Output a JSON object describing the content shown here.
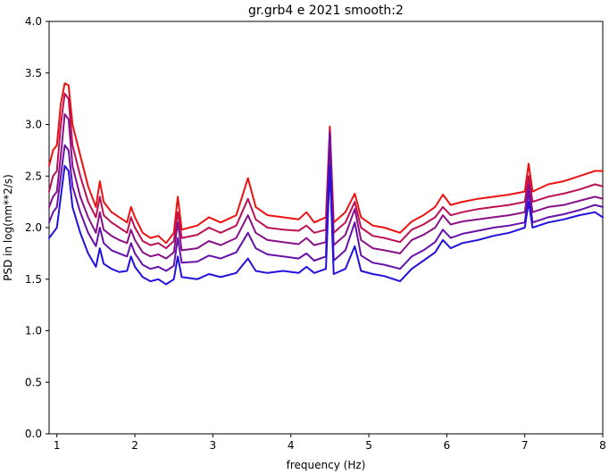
{
  "chart_data": {
    "type": "line",
    "title": "gr.grb4 e 2021 smooth:2",
    "xlabel": "frequency (Hz)",
    "ylabel": "PSD in log(nm**2/s)",
    "xlim": [
      0.9,
      8.0
    ],
    "ylim": [
      0.0,
      4.0
    ],
    "x_ticks": [
      1,
      2,
      3,
      4,
      5,
      6,
      7,
      8
    ],
    "x_tick_labels": [
      "1",
      "2",
      "3",
      "4",
      "5",
      "6",
      "7",
      "8"
    ],
    "y_ticks": [
      0.0,
      0.5,
      1.0,
      1.5,
      2.0,
      2.5,
      3.0,
      3.5,
      4.0
    ],
    "y_tick_labels": [
      "0.0",
      "0.5",
      "1.0",
      "1.5",
      "2.0",
      "2.5",
      "3.0",
      "3.5",
      "4.0"
    ],
    "grid": false,
    "legend": false,
    "series": [
      {
        "color": "#ee1111",
        "points": [
          [
            0.9,
            2.6
          ],
          [
            0.95,
            2.75
          ],
          [
            1.0,
            2.8
          ],
          [
            1.05,
            3.2
          ],
          [
            1.1,
            3.4
          ],
          [
            1.15,
            3.38
          ],
          [
            1.2,
            3.0
          ],
          [
            1.3,
            2.7
          ],
          [
            1.4,
            2.4
          ],
          [
            1.5,
            2.2
          ],
          [
            1.55,
            2.45
          ],
          [
            1.6,
            2.25
          ],
          [
            1.7,
            2.15
          ],
          [
            1.8,
            2.1
          ],
          [
            1.9,
            2.05
          ],
          [
            1.95,
            2.2
          ],
          [
            2.0,
            2.1
          ],
          [
            2.1,
            1.95
          ],
          [
            2.2,
            1.9
          ],
          [
            2.3,
            1.92
          ],
          [
            2.4,
            1.85
          ],
          [
            2.5,
            1.95
          ],
          [
            2.55,
            2.3
          ],
          [
            2.6,
            1.98
          ],
          [
            2.8,
            2.02
          ],
          [
            2.95,
            2.1
          ],
          [
            3.1,
            2.05
          ],
          [
            3.3,
            2.12
          ],
          [
            3.45,
            2.48
          ],
          [
            3.55,
            2.2
          ],
          [
            3.7,
            2.12
          ],
          [
            3.9,
            2.1
          ],
          [
            4.1,
            2.08
          ],
          [
            4.2,
            2.15
          ],
          [
            4.3,
            2.05
          ],
          [
            4.45,
            2.1
          ],
          [
            4.5,
            2.98
          ],
          [
            4.55,
            2.05
          ],
          [
            4.7,
            2.15
          ],
          [
            4.82,
            2.33
          ],
          [
            4.9,
            2.1
          ],
          [
            5.05,
            2.02
          ],
          [
            5.2,
            2.0
          ],
          [
            5.4,
            1.95
          ],
          [
            5.55,
            2.06
          ],
          [
            5.7,
            2.12
          ],
          [
            5.85,
            2.2
          ],
          [
            5.95,
            2.32
          ],
          [
            6.05,
            2.22
          ],
          [
            6.2,
            2.25
          ],
          [
            6.4,
            2.28
          ],
          [
            6.6,
            2.3
          ],
          [
            6.8,
            2.32
          ],
          [
            7.0,
            2.35
          ],
          [
            7.05,
            2.62
          ],
          [
            7.1,
            2.35
          ],
          [
            7.3,
            2.42
          ],
          [
            7.5,
            2.45
          ],
          [
            7.7,
            2.5
          ],
          [
            7.9,
            2.55
          ],
          [
            8.0,
            2.55
          ]
        ]
      },
      {
        "color": "#bb1155",
        "points": [
          [
            0.9,
            2.35
          ],
          [
            0.95,
            2.5
          ],
          [
            1.0,
            2.55
          ],
          [
            1.05,
            3.0
          ],
          [
            1.1,
            3.3
          ],
          [
            1.15,
            3.25
          ],
          [
            1.2,
            2.8
          ],
          [
            1.3,
            2.5
          ],
          [
            1.4,
            2.25
          ],
          [
            1.5,
            2.1
          ],
          [
            1.55,
            2.3
          ],
          [
            1.6,
            2.12
          ],
          [
            1.7,
            2.05
          ],
          [
            1.8,
            2.0
          ],
          [
            1.9,
            1.95
          ],
          [
            1.95,
            2.1
          ],
          [
            2.0,
            2.0
          ],
          [
            2.1,
            1.87
          ],
          [
            2.2,
            1.83
          ],
          [
            2.3,
            1.85
          ],
          [
            2.4,
            1.8
          ],
          [
            2.5,
            1.87
          ],
          [
            2.55,
            2.15
          ],
          [
            2.6,
            1.9
          ],
          [
            2.8,
            1.93
          ],
          [
            2.95,
            2.0
          ],
          [
            3.1,
            1.95
          ],
          [
            3.3,
            2.02
          ],
          [
            3.45,
            2.28
          ],
          [
            3.55,
            2.08
          ],
          [
            3.7,
            2.0
          ],
          [
            3.9,
            1.98
          ],
          [
            4.1,
            1.97
          ],
          [
            4.2,
            2.02
          ],
          [
            4.3,
            1.95
          ],
          [
            4.45,
            1.98
          ],
          [
            4.5,
            2.95
          ],
          [
            4.55,
            1.95
          ],
          [
            4.7,
            2.05
          ],
          [
            4.82,
            2.25
          ],
          [
            4.9,
            2.0
          ],
          [
            5.05,
            1.92
          ],
          [
            5.2,
            1.9
          ],
          [
            5.4,
            1.86
          ],
          [
            5.55,
            1.98
          ],
          [
            5.7,
            2.03
          ],
          [
            5.85,
            2.1
          ],
          [
            5.95,
            2.2
          ],
          [
            6.05,
            2.12
          ],
          [
            6.2,
            2.15
          ],
          [
            6.4,
            2.18
          ],
          [
            6.6,
            2.2
          ],
          [
            6.8,
            2.22
          ],
          [
            7.0,
            2.25
          ],
          [
            7.05,
            2.5
          ],
          [
            7.1,
            2.25
          ],
          [
            7.3,
            2.3
          ],
          [
            7.5,
            2.33
          ],
          [
            7.7,
            2.37
          ],
          [
            7.9,
            2.42
          ],
          [
            8.0,
            2.4
          ]
        ]
      },
      {
        "color": "#881188",
        "points": [
          [
            0.9,
            2.2
          ],
          [
            0.95,
            2.3
          ],
          [
            1.0,
            2.35
          ],
          [
            1.05,
            2.7
          ],
          [
            1.1,
            3.1
          ],
          [
            1.15,
            3.05
          ],
          [
            1.2,
            2.6
          ],
          [
            1.3,
            2.3
          ],
          [
            1.4,
            2.1
          ],
          [
            1.5,
            1.95
          ],
          [
            1.55,
            2.15
          ],
          [
            1.6,
            1.98
          ],
          [
            1.7,
            1.92
          ],
          [
            1.8,
            1.88
          ],
          [
            1.9,
            1.85
          ],
          [
            1.95,
            1.98
          ],
          [
            2.0,
            1.88
          ],
          [
            2.1,
            1.76
          ],
          [
            2.2,
            1.72
          ],
          [
            2.3,
            1.74
          ],
          [
            2.4,
            1.7
          ],
          [
            2.5,
            1.76
          ],
          [
            2.55,
            2.05
          ],
          [
            2.6,
            1.78
          ],
          [
            2.8,
            1.8
          ],
          [
            2.95,
            1.87
          ],
          [
            3.1,
            1.83
          ],
          [
            3.3,
            1.9
          ],
          [
            3.45,
            2.12
          ],
          [
            3.55,
            1.95
          ],
          [
            3.7,
            1.88
          ],
          [
            3.9,
            1.86
          ],
          [
            4.1,
            1.84
          ],
          [
            4.2,
            1.9
          ],
          [
            4.3,
            1.83
          ],
          [
            4.45,
            1.86
          ],
          [
            4.5,
            2.92
          ],
          [
            4.55,
            1.83
          ],
          [
            4.7,
            1.93
          ],
          [
            4.82,
            2.18
          ],
          [
            4.9,
            1.88
          ],
          [
            5.05,
            1.8
          ],
          [
            5.2,
            1.78
          ],
          [
            5.4,
            1.75
          ],
          [
            5.55,
            1.88
          ],
          [
            5.7,
            1.93
          ],
          [
            5.85,
            2.0
          ],
          [
            5.95,
            2.12
          ],
          [
            6.05,
            2.03
          ],
          [
            6.2,
            2.06
          ],
          [
            6.4,
            2.08
          ],
          [
            6.6,
            2.1
          ],
          [
            6.8,
            2.12
          ],
          [
            7.0,
            2.15
          ],
          [
            7.05,
            2.42
          ],
          [
            7.1,
            2.15
          ],
          [
            7.3,
            2.2
          ],
          [
            7.5,
            2.22
          ],
          [
            7.7,
            2.26
          ],
          [
            7.9,
            2.3
          ],
          [
            8.0,
            2.28
          ]
        ]
      },
      {
        "color": "#6611aa",
        "points": [
          [
            0.9,
            2.05
          ],
          [
            0.95,
            2.15
          ],
          [
            1.0,
            2.2
          ],
          [
            1.05,
            2.5
          ],
          [
            1.1,
            2.8
          ],
          [
            1.15,
            2.75
          ],
          [
            1.2,
            2.4
          ],
          [
            1.3,
            2.15
          ],
          [
            1.4,
            1.95
          ],
          [
            1.5,
            1.82
          ],
          [
            1.55,
            2.0
          ],
          [
            1.6,
            1.85
          ],
          [
            1.7,
            1.78
          ],
          [
            1.8,
            1.75
          ],
          [
            1.9,
            1.72
          ],
          [
            1.95,
            1.85
          ],
          [
            2.0,
            1.75
          ],
          [
            2.1,
            1.64
          ],
          [
            2.2,
            1.6
          ],
          [
            2.3,
            1.62
          ],
          [
            2.4,
            1.58
          ],
          [
            2.5,
            1.63
          ],
          [
            2.55,
            1.9
          ],
          [
            2.6,
            1.66
          ],
          [
            2.8,
            1.67
          ],
          [
            2.95,
            1.73
          ],
          [
            3.1,
            1.7
          ],
          [
            3.3,
            1.76
          ],
          [
            3.45,
            1.95
          ],
          [
            3.55,
            1.8
          ],
          [
            3.7,
            1.74
          ],
          [
            3.9,
            1.72
          ],
          [
            4.1,
            1.7
          ],
          [
            4.2,
            1.75
          ],
          [
            4.3,
            1.68
          ],
          [
            4.45,
            1.72
          ],
          [
            4.5,
            2.9
          ],
          [
            4.55,
            1.68
          ],
          [
            4.7,
            1.78
          ],
          [
            4.82,
            2.05
          ],
          [
            4.9,
            1.73
          ],
          [
            5.05,
            1.66
          ],
          [
            5.2,
            1.64
          ],
          [
            5.4,
            1.6
          ],
          [
            5.55,
            1.72
          ],
          [
            5.7,
            1.78
          ],
          [
            5.85,
            1.86
          ],
          [
            5.95,
            1.98
          ],
          [
            6.05,
            1.9
          ],
          [
            6.2,
            1.94
          ],
          [
            6.4,
            1.97
          ],
          [
            6.6,
            2.0
          ],
          [
            6.8,
            2.02
          ],
          [
            7.0,
            2.05
          ],
          [
            7.05,
            2.35
          ],
          [
            7.1,
            2.05
          ],
          [
            7.3,
            2.1
          ],
          [
            7.5,
            2.13
          ],
          [
            7.7,
            2.17
          ],
          [
            7.9,
            2.22
          ],
          [
            8.0,
            2.2
          ]
        ]
      },
      {
        "color": "#2211dd",
        "points": [
          [
            0.9,
            1.9
          ],
          [
            0.95,
            1.95
          ],
          [
            1.0,
            2.0
          ],
          [
            1.05,
            2.3
          ],
          [
            1.1,
            2.6
          ],
          [
            1.15,
            2.55
          ],
          [
            1.2,
            2.2
          ],
          [
            1.3,
            1.95
          ],
          [
            1.4,
            1.75
          ],
          [
            1.5,
            1.62
          ],
          [
            1.55,
            1.8
          ],
          [
            1.6,
            1.65
          ],
          [
            1.7,
            1.6
          ],
          [
            1.8,
            1.57
          ],
          [
            1.9,
            1.58
          ],
          [
            1.95,
            1.72
          ],
          [
            2.0,
            1.62
          ],
          [
            2.1,
            1.52
          ],
          [
            2.2,
            1.48
          ],
          [
            2.3,
            1.5
          ],
          [
            2.4,
            1.45
          ],
          [
            2.5,
            1.5
          ],
          [
            2.55,
            1.72
          ],
          [
            2.6,
            1.52
          ],
          [
            2.8,
            1.5
          ],
          [
            2.95,
            1.55
          ],
          [
            3.1,
            1.52
          ],
          [
            3.3,
            1.56
          ],
          [
            3.45,
            1.7
          ],
          [
            3.55,
            1.58
          ],
          [
            3.7,
            1.56
          ],
          [
            3.9,
            1.58
          ],
          [
            4.1,
            1.56
          ],
          [
            4.2,
            1.62
          ],
          [
            4.3,
            1.56
          ],
          [
            4.45,
            1.6
          ],
          [
            4.5,
            2.6
          ],
          [
            4.55,
            1.55
          ],
          [
            4.7,
            1.6
          ],
          [
            4.82,
            1.82
          ],
          [
            4.9,
            1.58
          ],
          [
            5.05,
            1.55
          ],
          [
            5.2,
            1.53
          ],
          [
            5.4,
            1.48
          ],
          [
            5.55,
            1.6
          ],
          [
            5.7,
            1.68
          ],
          [
            5.85,
            1.76
          ],
          [
            5.95,
            1.88
          ],
          [
            6.05,
            1.8
          ],
          [
            6.2,
            1.85
          ],
          [
            6.4,
            1.88
          ],
          [
            6.6,
            1.92
          ],
          [
            6.8,
            1.95
          ],
          [
            7.0,
            2.0
          ],
          [
            7.05,
            2.25
          ],
          [
            7.1,
            2.0
          ],
          [
            7.3,
            2.05
          ],
          [
            7.5,
            2.08
          ],
          [
            7.7,
            2.12
          ],
          [
            7.9,
            2.15
          ],
          [
            8.0,
            2.1
          ]
        ]
      }
    ]
  }
}
